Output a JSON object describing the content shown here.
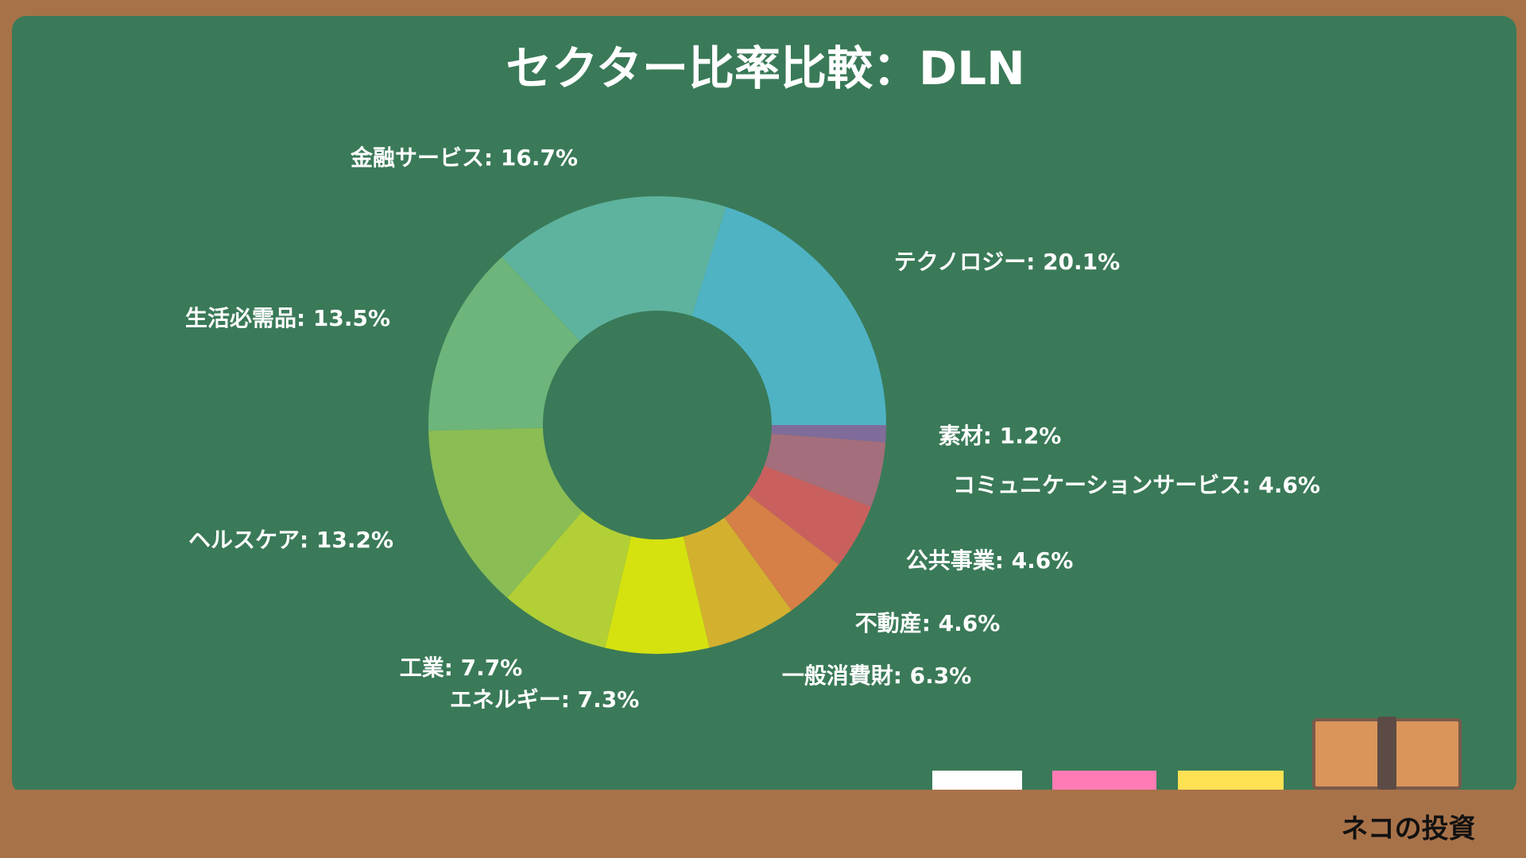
{
  "chart_data": {
    "type": "donut",
    "title": "セクター比率比較：DLN",
    "value_labels": [
      "テクノロジー: 20.1%",
      "金融サービス: 16.7%",
      "生活必需品: 13.5%",
      "ヘルスケア: 13.2%",
      "工業: 7.7%",
      "エネルギー: 7.3%",
      "一般消費財: 6.3%",
      "不動産: 4.6%",
      "公共事業: 4.6%",
      "コミュニケーションサービス: 4.6%",
      "素材: 1.2%"
    ],
    "values": [
      20.1,
      16.7,
      13.5,
      13.2,
      7.7,
      7.3,
      6.3,
      4.6,
      4.6,
      4.6,
      1.2
    ],
    "colors": [
      "#4fb3c4",
      "#5eb39e",
      "#6db57a",
      "#8bbd55",
      "#b2cf36",
      "#d5e210",
      "#d4b02f",
      "#d67f46",
      "#c9605e",
      "#a56e7c",
      "#7f6c9a"
    ]
  },
  "brand": "ネコの投資"
}
